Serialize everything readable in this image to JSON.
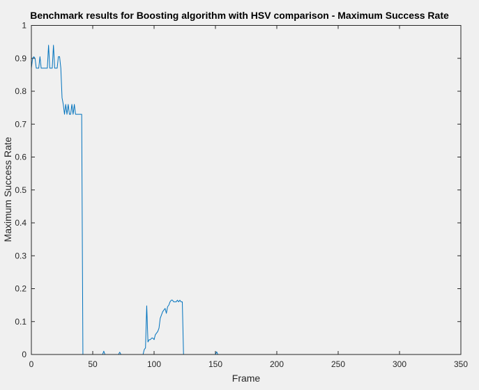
{
  "chart_data": {
    "type": "line",
    "title": "Benchmark results for Boosting algorithm with HSV comparison - Maximum Success Rate",
    "xlabel": "Frame",
    "ylabel": "Maximum Success Rate",
    "xlim": [
      0,
      350
    ],
    "ylim": [
      0,
      1
    ],
    "xticks": [
      0,
      50,
      100,
      150,
      200,
      250,
      300,
      350
    ],
    "yticks": [
      0,
      0.1,
      0.2,
      0.3,
      0.4,
      0.5,
      0.6,
      0.7,
      0.8,
      0.9,
      1
    ],
    "xtick_labels": [
      "0",
      "50",
      "100",
      "150",
      "200",
      "250",
      "300",
      "350"
    ],
    "ytick_labels": [
      "0",
      "0.1",
      "0.2",
      "0.3",
      "0.4",
      "0.5",
      "0.6",
      "0.7",
      "0.8",
      "0.9",
      "1"
    ],
    "grid": false,
    "line_color": "#0072bd",
    "series": [
      {
        "x": [
          0,
          1,
          2,
          3,
          4,
          5,
          6,
          7,
          8,
          9,
          10,
          11,
          12,
          13,
          14,
          15,
          16,
          17,
          18,
          19,
          20,
          21,
          22,
          23,
          24,
          25,
          26,
          27,
          28,
          29,
          30,
          31,
          32,
          33,
          34,
          35,
          36,
          37,
          38,
          39,
          40,
          41,
          42,
          43,
          58,
          59,
          60,
          61,
          71,
          72,
          73,
          74,
          91,
          92,
          93,
          94,
          95,
          96,
          97,
          98,
          99,
          100,
          101,
          102,
          103,
          104,
          105,
          106,
          107,
          108,
          109,
          110,
          111,
          112,
          113,
          114,
          115,
          116,
          117,
          118,
          119,
          120,
          121,
          122,
          123,
          124,
          125,
          150,
          151,
          152,
          153,
          314
        ],
        "y": [
          0.87,
          0.9,
          0.905,
          0.9,
          0.87,
          0.87,
          0.87,
          0.905,
          0.87,
          0.87,
          0.87,
          0.87,
          0.87,
          0.87,
          0.94,
          0.87,
          0.87,
          0.87,
          0.94,
          0.87,
          0.87,
          0.87,
          0.905,
          0.905,
          0.87,
          0.78,
          0.76,
          0.73,
          0.76,
          0.73,
          0.76,
          0.73,
          0.73,
          0.76,
          0.73,
          0.76,
          0.73,
          0.73,
          0.73,
          0.73,
          0.73,
          0.73,
          0.0,
          0.0,
          0.0,
          0.01,
          0.0,
          0.0,
          0.0,
          0.007,
          0.0,
          0.0,
          0.0,
          0.015,
          0.02,
          0.148,
          0.038,
          0.045,
          0.045,
          0.05,
          0.05,
          0.045,
          0.06,
          0.065,
          0.07,
          0.08,
          0.11,
          0.12,
          0.13,
          0.135,
          0.14,
          0.125,
          0.145,
          0.15,
          0.16,
          0.165,
          0.165,
          0.16,
          0.16,
          0.16,
          0.165,
          0.16,
          0.165,
          0.16,
          0.16,
          0.0,
          0.0,
          0.0,
          0.008,
          0.0,
          0.0,
          0.0
        ]
      }
    ]
  }
}
